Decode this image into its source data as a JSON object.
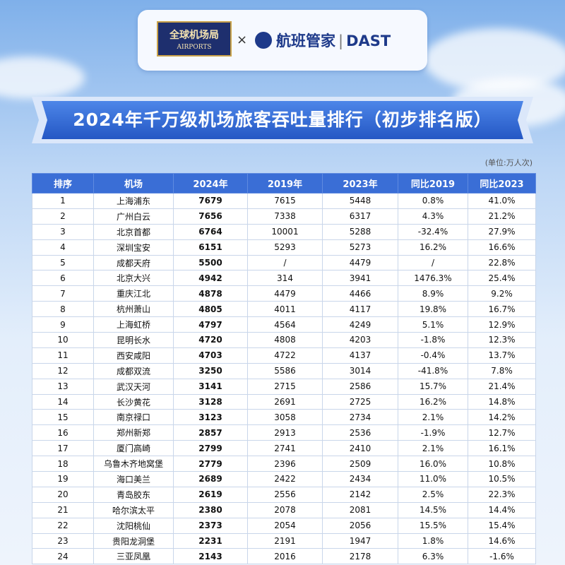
{
  "header": {
    "logo_left": {
      "title": "全球机场局",
      "subtitle": "AIRPORTS"
    },
    "separator": "×",
    "logo_right": {
      "name": "航班管家",
      "divider": "|",
      "brand": "DAST"
    }
  },
  "title": "2024年千万级机场旅客吞吐量排行（初步排名版）",
  "unit": "(单位:万人次)",
  "table": {
    "columns": [
      "排序",
      "机场",
      "2024年",
      "2019年",
      "2023年",
      "同比2019",
      "同比2023"
    ],
    "rows": [
      [
        "1",
        "上海浦东",
        "7679",
        "7615",
        "5448",
        "0.8%",
        "41.0%"
      ],
      [
        "2",
        "广州白云",
        "7656",
        "7338",
        "6317",
        "4.3%",
        "21.2%"
      ],
      [
        "3",
        "北京首都",
        "6764",
        "10001",
        "5288",
        "-32.4%",
        "27.9%"
      ],
      [
        "4",
        "深圳宝安",
        "6151",
        "5293",
        "5273",
        "16.2%",
        "16.6%"
      ],
      [
        "5",
        "成都天府",
        "5500",
        "/",
        "4479",
        "/",
        "22.8%"
      ],
      [
        "6",
        "北京大兴",
        "4942",
        "314",
        "3941",
        "1476.3%",
        "25.4%"
      ],
      [
        "7",
        "重庆江北",
        "4878",
        "4479",
        "4466",
        "8.9%",
        "9.2%"
      ],
      [
        "8",
        "杭州萧山",
        "4805",
        "4011",
        "4117",
        "19.8%",
        "16.7%"
      ],
      [
        "9",
        "上海虹桥",
        "4797",
        "4564",
        "4249",
        "5.1%",
        "12.9%"
      ],
      [
        "10",
        "昆明长水",
        "4720",
        "4808",
        "4203",
        "-1.8%",
        "12.3%"
      ],
      [
        "11",
        "西安咸阳",
        "4703",
        "4722",
        "4137",
        "-0.4%",
        "13.7%"
      ],
      [
        "12",
        "成都双流",
        "3250",
        "5586",
        "3014",
        "-41.8%",
        "7.8%"
      ],
      [
        "13",
        "武汉天河",
        "3141",
        "2715",
        "2586",
        "15.7%",
        "21.4%"
      ],
      [
        "14",
        "长沙黄花",
        "3128",
        "2691",
        "2725",
        "16.2%",
        "14.8%"
      ],
      [
        "15",
        "南京禄口",
        "3123",
        "3058",
        "2734",
        "2.1%",
        "14.2%"
      ],
      [
        "16",
        "郑州新郑",
        "2857",
        "2913",
        "2536",
        "-1.9%",
        "12.7%"
      ],
      [
        "17",
        "厦门高崎",
        "2799",
        "2741",
        "2410",
        "2.1%",
        "16.1%"
      ],
      [
        "18",
        "乌鲁木齐地窝堡",
        "2779",
        "2396",
        "2509",
        "16.0%",
        "10.8%"
      ],
      [
        "19",
        "海口美兰",
        "2689",
        "2422",
        "2434",
        "11.0%",
        "10.5%"
      ],
      [
        "20",
        "青岛胶东",
        "2619",
        "2556",
        "2142",
        "2.5%",
        "22.3%"
      ],
      [
        "21",
        "哈尔滨太平",
        "2380",
        "2078",
        "2081",
        "14.5%",
        "14.4%"
      ],
      [
        "22",
        "沈阳桃仙",
        "2373",
        "2054",
        "2056",
        "15.5%",
        "15.4%"
      ],
      [
        "23",
        "贵阳龙洞堡",
        "2231",
        "2191",
        "1947",
        "1.8%",
        "14.6%"
      ],
      [
        "24",
        "三亚凤凰",
        "2143",
        "2016",
        "2178",
        "6.3%",
        "-1.6%"
      ]
    ]
  }
}
